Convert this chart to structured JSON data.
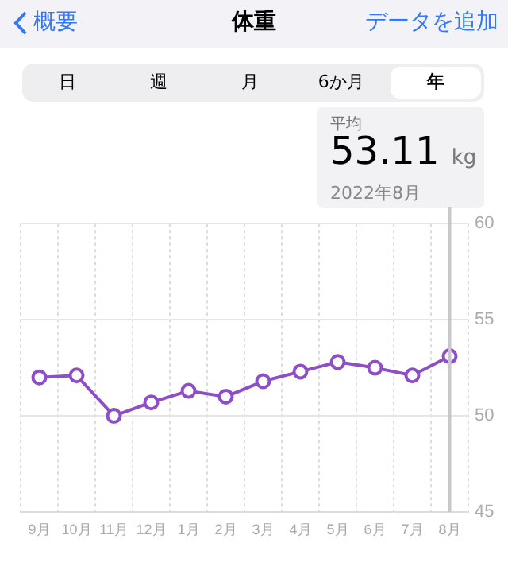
{
  "chart_data": {
    "type": "line",
    "title": "体重",
    "categories": [
      "9月",
      "10月",
      "11月",
      "12月",
      "1月",
      "2月",
      "3月",
      "4月",
      "5月",
      "6月",
      "7月",
      "8月"
    ],
    "series": [
      {
        "color": "#8e4ec6",
        "values": [
          52.0,
          52.1,
          50.0,
          50.7,
          51.3,
          51.0,
          51.8,
          52.3,
          52.8,
          52.5,
          52.1,
          53.1
        ]
      }
    ],
    "ylim": [
      45,
      60
    ],
    "yticks": [
      45,
      50,
      55,
      60
    ],
    "grid": true,
    "marker": "circle",
    "line_style": "solid",
    "legend": false,
    "ref_lines": [
      {
        "axis": "x",
        "value": "8月",
        "color": "#c7c7cc"
      }
    ],
    "annotations": [
      "概要",
      "データを追加",
      "日",
      "週",
      "月",
      "6か月",
      "年",
      "平均",
      "53.11 kg",
      "2022年8月"
    ]
  }
}
